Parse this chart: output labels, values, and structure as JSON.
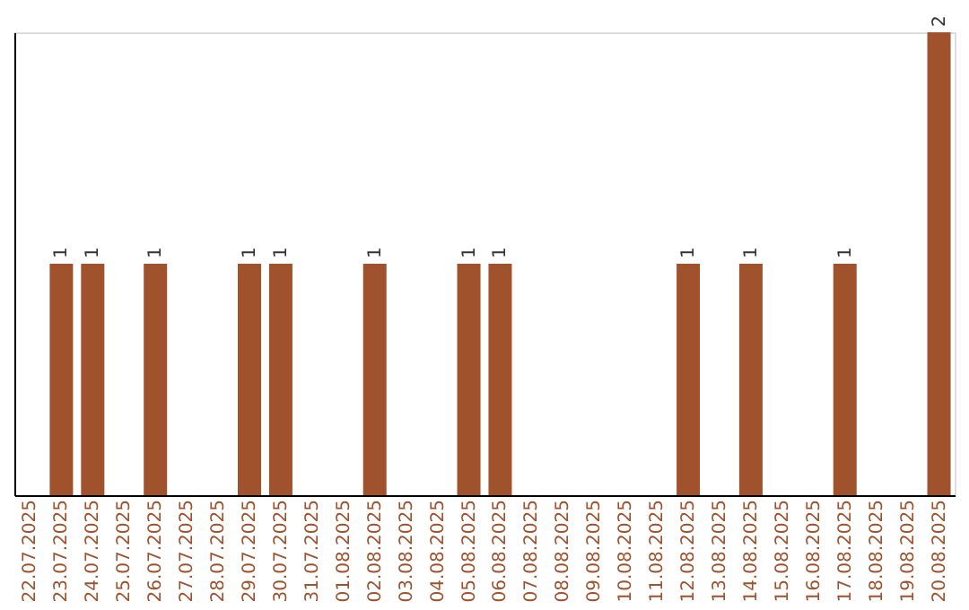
{
  "chart_data": {
    "type": "bar",
    "categories": [
      "22.07.2025",
      "23.07.2025",
      "24.07.2025",
      "25.07.2025",
      "26.07.2025",
      "27.07.2025",
      "28.07.2025",
      "29.07.2025",
      "30.07.2025",
      "31.07.2025",
      "01.08.2025",
      "02.08.2025",
      "03.08.2025",
      "04.08.2025",
      "05.08.2025",
      "06.08.2025",
      "07.08.2025",
      "08.08.2025",
      "09.08.2025",
      "10.08.2025",
      "11.08.2025",
      "12.08.2025",
      "13.08.2025",
      "14.08.2025",
      "15.08.2025",
      "16.08.2025",
      "17.08.2025",
      "18.08.2025",
      "19.08.2025",
      "20.08.2025"
    ],
    "values": [
      0,
      1,
      1,
      0,
      1,
      0,
      0,
      1,
      1,
      0,
      0,
      1,
      0,
      0,
      1,
      1,
      0,
      0,
      0,
      0,
      0,
      1,
      0,
      1,
      0,
      0,
      1,
      0,
      0,
      2
    ],
    "color": "#a0522d",
    "ylim": [
      0,
      2
    ],
    "value_labels": [
      null,
      "1",
      "1",
      null,
      "1",
      null,
      null,
      "1",
      "1",
      null,
      null,
      "1",
      null,
      null,
      "1",
      "1",
      null,
      null,
      null,
      null,
      null,
      "1",
      null,
      "1",
      null,
      null,
      "1",
      null,
      null,
      "2"
    ],
    "tick_labels": "x",
    "grid": false
  }
}
